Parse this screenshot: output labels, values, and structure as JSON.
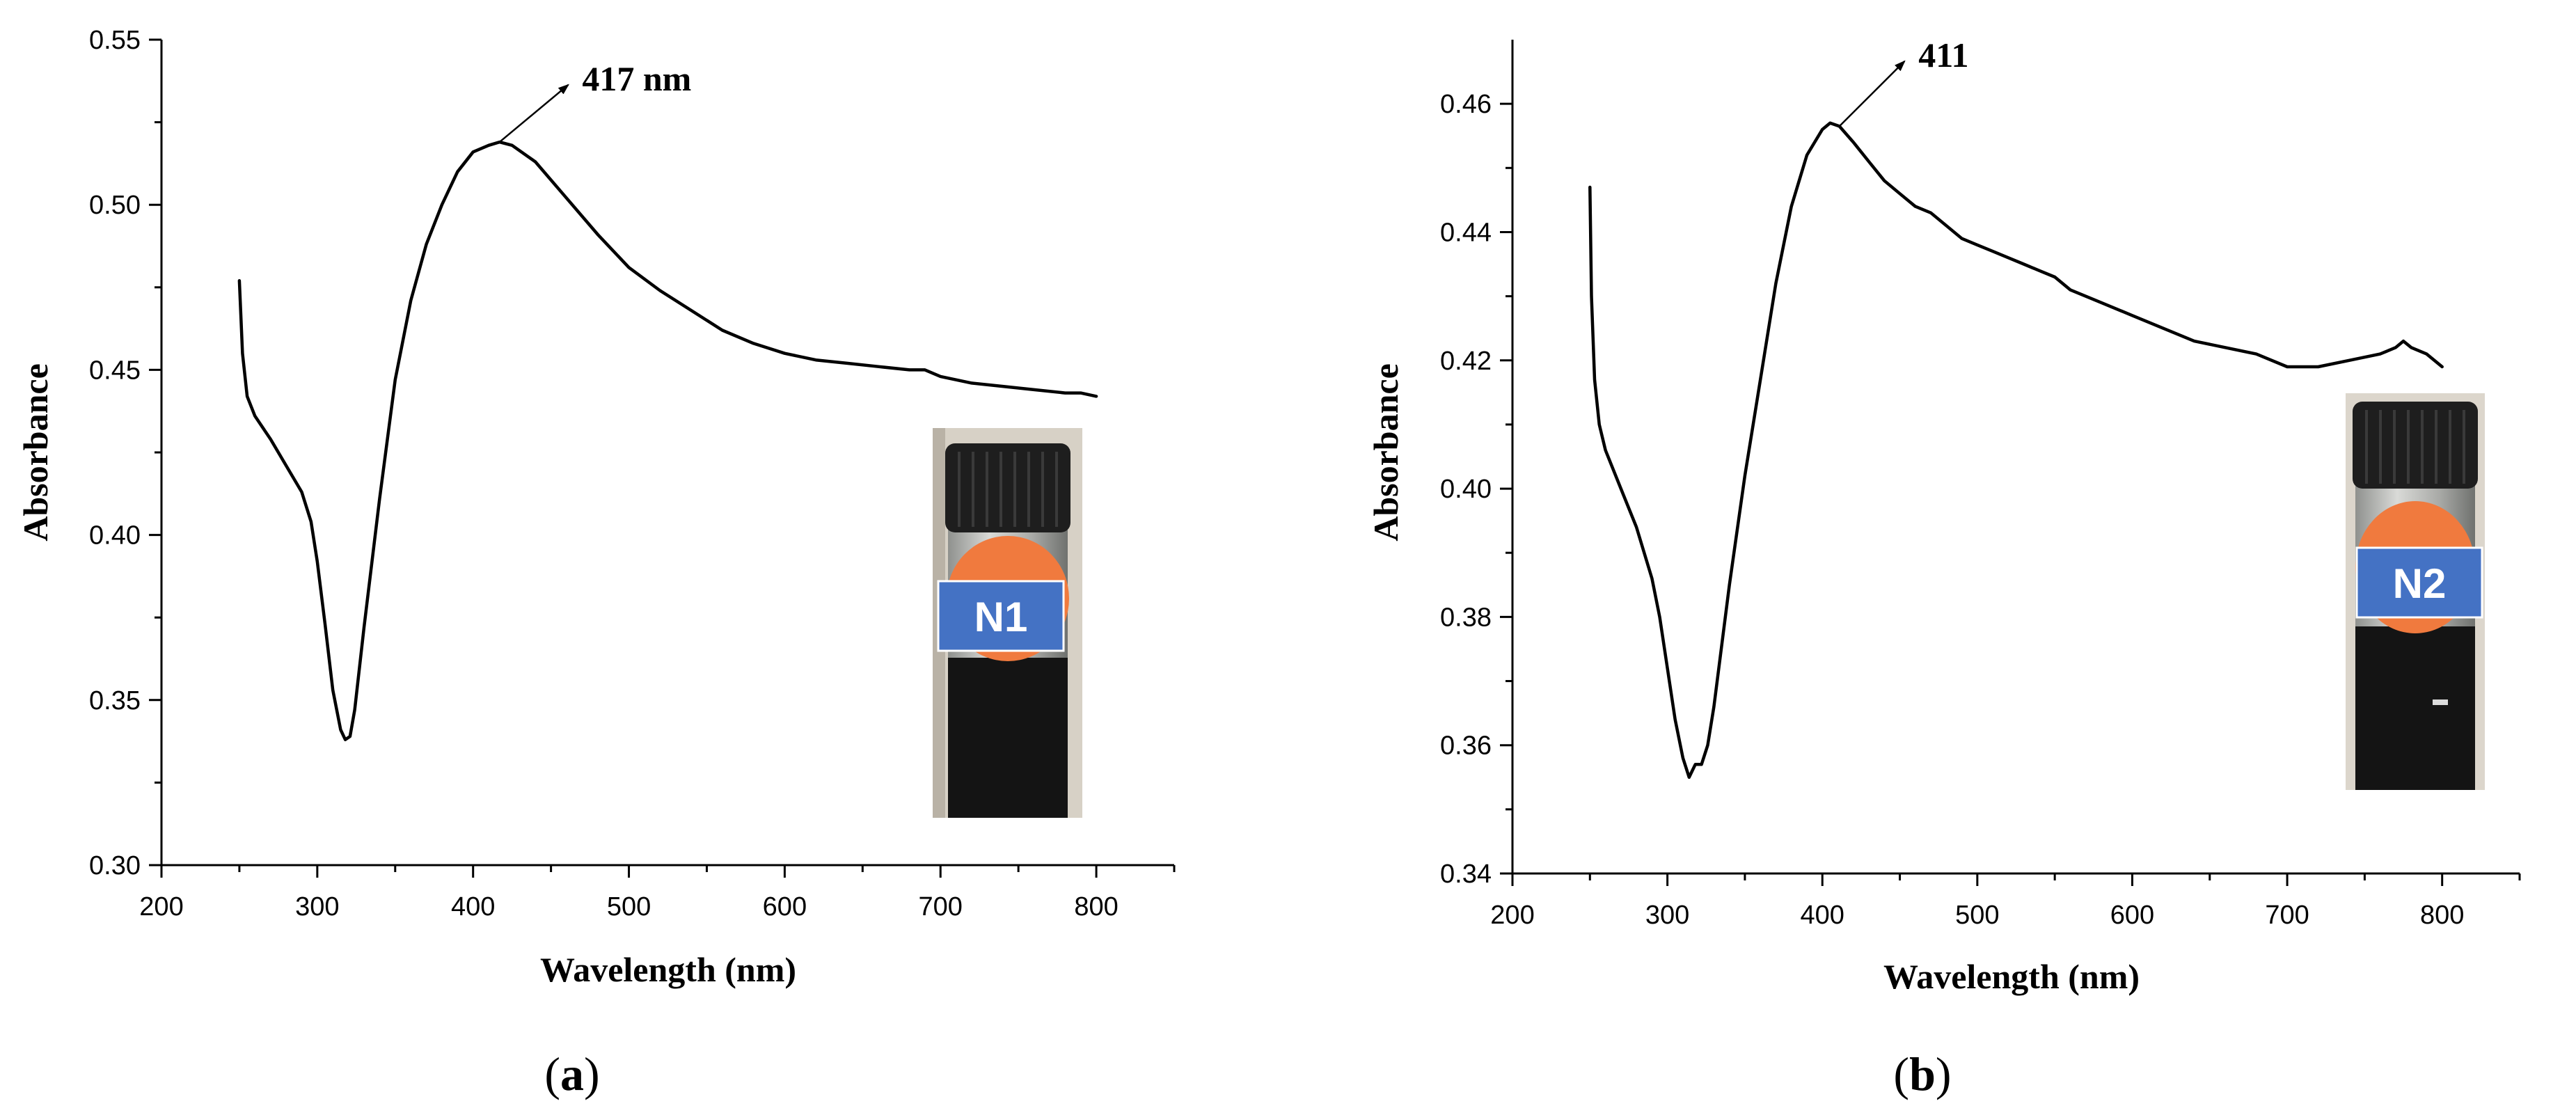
{
  "chart_data": [
    {
      "type": "line",
      "panel_label_open": "(",
      "panel_label_letter": "a",
      "panel_label_close": ")",
      "xlabel": "Wavelength (nm)",
      "ylabel": "Absorbance",
      "xlim": [
        200,
        850
      ],
      "ylim": [
        0.3,
        0.55
      ],
      "xticks": [
        200,
        300,
        400,
        500,
        600,
        700,
        800
      ],
      "yticks": [
        0.3,
        0.35,
        0.4,
        0.45,
        0.5,
        0.55
      ],
      "ytick_decimals": 2,
      "annotation": {
        "text": "417 nm",
        "x": 417,
        "y": 0.519,
        "text_x": 470,
        "text_y": 0.538
      },
      "inset_label": "N1",
      "series": [
        {
          "name": "N1",
          "x": [
            250,
            252,
            255,
            260,
            270,
            280,
            290,
            296,
            300,
            305,
            310,
            315,
            318,
            321,
            324,
            330,
            340,
            350,
            360,
            370,
            380,
            390,
            400,
            410,
            417,
            425,
            440,
            460,
            480,
            500,
            520,
            540,
            560,
            580,
            600,
            620,
            640,
            660,
            680,
            690,
            700,
            720,
            740,
            760,
            780,
            790,
            800
          ],
          "values": [
            0.477,
            0.455,
            0.442,
            0.436,
            0.429,
            0.421,
            0.413,
            0.404,
            0.392,
            0.373,
            0.353,
            0.341,
            0.338,
            0.339,
            0.347,
            0.372,
            0.411,
            0.447,
            0.471,
            0.488,
            0.5,
            0.51,
            0.516,
            0.518,
            0.519,
            0.518,
            0.513,
            0.502,
            0.491,
            0.481,
            0.474,
            0.468,
            0.462,
            0.458,
            0.455,
            0.453,
            0.452,
            0.451,
            0.45,
            0.45,
            0.448,
            0.446,
            0.445,
            0.444,
            0.443,
            0.443,
            0.442
          ]
        }
      ]
    },
    {
      "type": "line",
      "panel_label_open": "(",
      "panel_label_letter": "b",
      "panel_label_close": ")",
      "xlabel": "Wavelength (nm)",
      "ylabel": "Absorbance",
      "xlim": [
        200,
        850
      ],
      "ylim": [
        0.34,
        0.47
      ],
      "xticks": [
        200,
        300,
        400,
        500,
        600,
        700,
        800
      ],
      "yticks": [
        0.34,
        0.36,
        0.38,
        0.4,
        0.42,
        0.44,
        0.46
      ],
      "ytick_decimals": 2,
      "annotation": {
        "text": "411",
        "x": 411,
        "y": 0.4565,
        "text_x": 462,
        "text_y": 0.4675
      },
      "inset_label": "N2",
      "series": [
        {
          "name": "N2",
          "x": [
            250,
            251,
            253,
            256,
            260,
            270,
            280,
            290,
            295,
            300,
            305,
            310,
            314,
            316,
            318,
            322,
            326,
            330,
            340,
            350,
            360,
            370,
            380,
            390,
            400,
            405,
            411,
            420,
            430,
            440,
            450,
            460,
            470,
            480,
            490,
            500,
            510,
            520,
            530,
            540,
            550,
            560,
            580,
            600,
            620,
            640,
            660,
            680,
            700,
            710,
            720,
            740,
            760,
            770,
            775,
            780,
            790,
            800
          ],
          "values": [
            0.447,
            0.43,
            0.417,
            0.41,
            0.406,
            0.4,
            0.394,
            0.386,
            0.38,
            0.372,
            0.364,
            0.358,
            0.355,
            0.356,
            0.357,
            0.357,
            0.36,
            0.366,
            0.385,
            0.402,
            0.417,
            0.432,
            0.444,
            0.452,
            0.456,
            0.457,
            0.4565,
            0.454,
            0.451,
            0.448,
            0.446,
            0.444,
            0.443,
            0.441,
            0.439,
            0.438,
            0.437,
            0.436,
            0.435,
            0.434,
            0.433,
            0.431,
            0.429,
            0.427,
            0.425,
            0.423,
            0.422,
            0.421,
            0.419,
            0.419,
            0.419,
            0.42,
            0.421,
            0.422,
            0.423,
            0.422,
            0.421,
            0.419
          ]
        }
      ]
    }
  ],
  "colors": {
    "vial_cap": "#1e1e1e",
    "vial_glass": "#b8b9b6",
    "vial_liquid": "#141414",
    "vial_orange": "#f07a3e",
    "vial_tag": "#4472c4",
    "photo_bg": "#d7d1c6"
  }
}
